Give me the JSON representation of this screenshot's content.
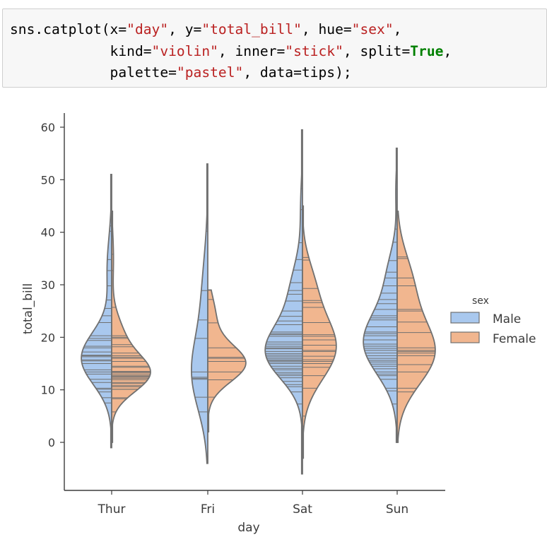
{
  "cell": {
    "code_lines": [
      [
        {
          "t": "sns.catplot(x=",
          "k": "plain"
        },
        {
          "t": "\"day\"",
          "k": "str"
        },
        {
          "t": ", y=",
          "k": "plain"
        },
        {
          "t": "\"total_bill\"",
          "k": "str"
        },
        {
          "t": ", hue=",
          "k": "plain"
        },
        {
          "t": "\"sex\"",
          "k": "str"
        },
        {
          "t": ",",
          "k": "plain"
        }
      ],
      [
        {
          "t": "            kind=",
          "k": "plain"
        },
        {
          "t": "\"violin\"",
          "k": "str"
        },
        {
          "t": ", inner=",
          "k": "plain"
        },
        {
          "t": "\"stick\"",
          "k": "str"
        },
        {
          "t": ", split=",
          "k": "plain"
        },
        {
          "t": "True",
          "k": "kw"
        },
        {
          "t": ",",
          "k": "plain"
        }
      ],
      [
        {
          "t": "            palette=",
          "k": "plain"
        },
        {
          "t": "\"pastel\"",
          "k": "str"
        },
        {
          "t": ", data=tips);",
          "k": "plain"
        }
      ]
    ]
  },
  "chart_data": {
    "type": "violin",
    "split": true,
    "inner": "stick",
    "xlabel": "day",
    "ylabel": "total_bill",
    "ylim": [
      -9,
      63
    ],
    "yticks": [
      0,
      10,
      20,
      30,
      40,
      50,
      60
    ],
    "categories": [
      "Thur",
      "Fri",
      "Sat",
      "Sun"
    ],
    "legend": {
      "title": "sex",
      "placement": "right",
      "entries": [
        "Male",
        "Female"
      ]
    },
    "colors": {
      "Male": "#a9c8ee",
      "Female": "#f1b68f",
      "edge": "#707070"
    },
    "series": [
      {
        "name": "Male",
        "violins": [
          {
            "range": [
              -1,
              51
            ],
            "scale": 0.78,
            "components": [
              [
                16,
                5,
                1
              ],
              [
                33,
                6,
                0.15
              ]
            ],
            "sticks": [
              7.5,
              8.5,
              9.6,
              10.1,
              10.3,
              11.4,
              12.0,
              13.0,
              13.4,
              13.8,
              15.0,
              15.5,
              15.7,
              16.3,
              16.5,
              16.6,
              17.2,
              18.0,
              18.3,
              19.4,
              19.8,
              20.3,
              22.8,
              24.1,
              25.5,
              27.1,
              29.8,
              32.7,
              34.8,
              40.2,
              41.2,
              48.2
            ]
          },
          {
            "range": [
              -4,
              53
            ],
            "scale": 0.42,
            "components": [
              [
                13,
                7,
                1
              ],
              [
                28,
                8,
                0.35
              ]
            ],
            "sticks": [
              5.8,
              8.6,
              12.0,
              12.2,
              12.4,
              13.4,
              19.8,
              23.3,
              28.9,
              40.2
            ]
          },
          {
            "range": [
              -6,
              59.5
            ],
            "scale": 0.96,
            "components": [
              [
                17,
                5,
                1
              ],
              [
                28,
                6,
                0.35
              ],
              [
                45,
                5,
                0.05
              ]
            ],
            "sticks": [
              3.1,
              7.3,
              9.6,
              10.6,
              11.0,
              11.6,
              12.3,
              12.7,
              13.0,
              13.3,
              13.8,
              14.1,
              14.5,
              15.0,
              15.3,
              15.5,
              15.7,
              16.0,
              16.3,
              16.6,
              16.9,
              17.3,
              17.8,
              18.0,
              18.3,
              18.7,
              19.1,
              20.2,
              20.5,
              20.7,
              21.0,
              22.4,
              23.1,
              24.0,
              25.0,
              26.9,
              28.2,
              28.9,
              30.4,
              32.8,
              34.8,
              38.0,
              44.3,
              48.3,
              50.8
            ]
          },
          {
            "range": [
              0,
              56
            ],
            "scale": 0.87,
            "components": [
              [
                19,
                6,
                1
              ],
              [
                32,
                5,
                0.25
              ],
              [
                48,
                4,
                0.04
              ]
            ],
            "sticks": [
              7.3,
              9.8,
              10.3,
              12.0,
              12.7,
              13.0,
              13.4,
              14.0,
              14.5,
              14.9,
              15.3,
              15.6,
              16.0,
              16.5,
              17.0,
              17.5,
              17.9,
              18.3,
              18.7,
              19.5,
              20.3,
              20.7,
              21.0,
              22.0,
              23.3,
              23.7,
              24.1,
              25.3,
              26.4,
              27.2,
              28.4,
              29.8,
              31.3,
              32.4,
              34.6,
              38.1,
              40.6,
              48.2
            ]
          }
        ]
      },
      {
        "name": "Female",
        "violins": [
          {
            "range": [
              0,
              44
            ],
            "scale": 1.0,
            "components": [
              [
                13,
                3.5,
                1
              ],
              [
                20,
                4,
                0.3
              ],
              [
                35,
                5,
                0.05
              ]
            ],
            "sticks": [
              5.8,
              8.3,
              8.5,
              10.1,
              10.1,
              10.6,
              10.8,
              11.2,
              11.4,
              11.9,
              12.2,
              12.4,
              12.6,
              12.7,
              13.0,
              13.3,
              13.4,
              13.5,
              14.3,
              14.5,
              15.4,
              16.0,
              16.2,
              16.5,
              17.0,
              18.2,
              18.6,
              19.8,
              20.0,
              20.3,
              25.7,
              32.7,
              35.8,
              43.1
            ]
          },
          {
            "range": [
              2,
              29
            ],
            "scale": 0.98,
            "components": [
              [
                15,
                3.5,
                1
              ],
              [
                24,
                4,
                0.2
              ]
            ],
            "sticks": [
              5.8,
              8.6,
              11.9,
              13.4,
              15.4,
              16.0,
              16.2,
              18.0,
              22.75,
              27.2
            ]
          },
          {
            "range": [
              -3,
              45
            ],
            "scale": 0.87,
            "components": [
              [
                18,
                6,
                1
              ],
              [
                30,
                5,
                0.3
              ]
            ],
            "sticks": [
              3.1,
              5.0,
              10.3,
              12.7,
              14.3,
              15.0,
              15.4,
              15.7,
              16.4,
              17.3,
              17.5,
              18.5,
              19.5,
              20.2,
              20.5,
              22.8,
              25.7,
              26.6,
              27.0,
              29.3,
              34.7,
              35.2,
              44.3
            ]
          },
          {
            "range": [
              0,
              44
            ],
            "scale": 0.98,
            "components": [
              [
                17,
                6,
                1
              ],
              [
                30,
                6,
                0.4
              ]
            ],
            "sticks": [
              9.6,
              10.3,
              13.4,
              14.8,
              16.5,
              17.0,
              17.3,
              17.5,
              18.0,
              20.9,
              22.9,
              25.0,
              25.3,
              29.8,
              31.3,
              35.0,
              35.3
            ]
          }
        ]
      }
    ]
  }
}
